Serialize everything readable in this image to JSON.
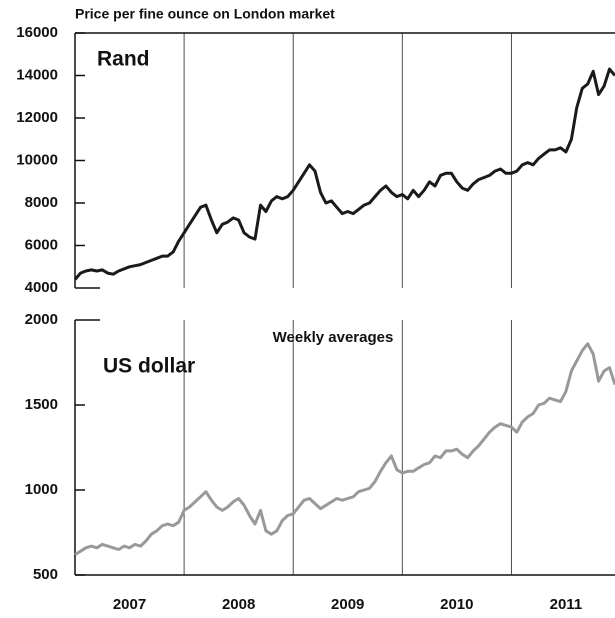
{
  "chart_data": [
    {
      "type": "line",
      "title": "Price per fine ounce on London market",
      "x": [
        2007.0,
        2007.05,
        2007.1,
        2007.15,
        2007.2,
        2007.25,
        2007.3,
        2007.35,
        2007.4,
        2007.45,
        2007.5,
        2007.55,
        2007.6,
        2007.65,
        2007.7,
        2007.75,
        2007.8,
        2007.85,
        2007.9,
        2007.95,
        2008.0,
        2008.05,
        2008.1,
        2008.15,
        2008.2,
        2008.25,
        2008.3,
        2008.35,
        2008.4,
        2008.45,
        2008.5,
        2008.55,
        2008.6,
        2008.65,
        2008.7,
        2008.75,
        2008.8,
        2008.85,
        2008.9,
        2008.95,
        2009.0,
        2009.05,
        2009.1,
        2009.15,
        2009.2,
        2009.25,
        2009.3,
        2009.35,
        2009.4,
        2009.45,
        2009.5,
        2009.55,
        2009.6,
        2009.65,
        2009.7,
        2009.75,
        2009.8,
        2009.85,
        2009.9,
        2009.95,
        2010.0,
        2010.05,
        2010.1,
        2010.15,
        2010.2,
        2010.25,
        2010.3,
        2010.35,
        2010.4,
        2010.45,
        2010.5,
        2010.55,
        2010.6,
        2010.65,
        2010.7,
        2010.75,
        2010.8,
        2010.85,
        2010.9,
        2010.95,
        2011.0,
        2011.05,
        2011.1,
        2011.15,
        2011.2,
        2011.25,
        2011.3,
        2011.35,
        2011.4,
        2011.45,
        2011.5,
        2011.55,
        2011.6,
        2011.65,
        2011.7,
        2011.75,
        2011.8,
        2011.85,
        2011.9,
        2011.95
      ],
      "series": [
        {
          "name": "Rand",
          "color": "#1a1a1a",
          "values": [
            4400,
            4700,
            4800,
            4850,
            4800,
            4850,
            4700,
            4650,
            4800,
            4900,
            5000,
            5050,
            5100,
            5200,
            5300,
            5400,
            5500,
            5500,
            5700,
            6200,
            6600,
            7000,
            7400,
            7800,
            7900,
            7200,
            6600,
            7000,
            7100,
            7300,
            7200,
            6600,
            6400,
            6300,
            7900,
            7600,
            8100,
            8300,
            8200,
            8300,
            8600,
            9000,
            9400,
            9800,
            9500,
            8500,
            8000,
            8100,
            7800,
            7500,
            7600,
            7500,
            7700,
            7900,
            8000,
            8300,
            8600,
            8800,
            8500,
            8300,
            8400,
            8200,
            8600,
            8300,
            8600,
            9000,
            8800,
            9300,
            9400,
            9400,
            9000,
            8700,
            8600,
            8900,
            9100,
            9200,
            9300,
            9500,
            9600,
            9400,
            9400,
            9500,
            9800,
            9900,
            9800,
            10100,
            10300,
            10500,
            10500,
            10600,
            10400,
            11000,
            12500,
            13400,
            13600,
            14200,
            13100,
            13500,
            14300,
            14000
          ]
        }
      ],
      "xlim": [
        2007,
        2011.95
      ],
      "dividers": [
        2008,
        2009,
        2010,
        2011
      ],
      "ylim": [
        4000,
        16000
      ],
      "yticks": [
        4000,
        6000,
        8000,
        10000,
        12000,
        14000,
        16000
      ]
    },
    {
      "type": "line",
      "annotation": "Weekly averages",
      "x": [
        2007.0,
        2007.05,
        2007.1,
        2007.15,
        2007.2,
        2007.25,
        2007.3,
        2007.35,
        2007.4,
        2007.45,
        2007.5,
        2007.55,
        2007.6,
        2007.65,
        2007.7,
        2007.75,
        2007.8,
        2007.85,
        2007.9,
        2007.95,
        2008.0,
        2008.05,
        2008.1,
        2008.15,
        2008.2,
        2008.25,
        2008.3,
        2008.35,
        2008.4,
        2008.45,
        2008.5,
        2008.55,
        2008.6,
        2008.65,
        2008.7,
        2008.75,
        2008.8,
        2008.85,
        2008.9,
        2008.95,
        2009.0,
        2009.05,
        2009.1,
        2009.15,
        2009.2,
        2009.25,
        2009.3,
        2009.35,
        2009.4,
        2009.45,
        2009.5,
        2009.55,
        2009.6,
        2009.65,
        2009.7,
        2009.75,
        2009.8,
        2009.85,
        2009.9,
        2009.95,
        2010.0,
        2010.05,
        2010.1,
        2010.15,
        2010.2,
        2010.25,
        2010.3,
        2010.35,
        2010.4,
        2010.45,
        2010.5,
        2010.55,
        2010.6,
        2010.65,
        2010.7,
        2010.75,
        2010.8,
        2010.85,
        2010.9,
        2010.95,
        2011.0,
        2011.05,
        2011.1,
        2011.15,
        2011.2,
        2011.25,
        2011.3,
        2011.35,
        2011.4,
        2011.45,
        2011.5,
        2011.55,
        2011.6,
        2011.65,
        2011.7,
        2011.75,
        2011.8,
        2011.85,
        2011.9,
        2011.95
      ],
      "series": [
        {
          "name": "US dollar",
          "color": "#999999",
          "values": [
            620,
            640,
            660,
            670,
            660,
            680,
            670,
            660,
            650,
            670,
            660,
            680,
            670,
            700,
            740,
            760,
            790,
            800,
            790,
            810,
            880,
            900,
            930,
            960,
            990,
            940,
            900,
            880,
            900,
            930,
            950,
            910,
            850,
            800,
            880,
            760,
            740,
            760,
            820,
            850,
            860,
            900,
            940,
            950,
            920,
            890,
            910,
            930,
            950,
            940,
            950,
            960,
            990,
            1000,
            1010,
            1050,
            1110,
            1160,
            1200,
            1120,
            1100,
            1110,
            1110,
            1130,
            1150,
            1160,
            1200,
            1190,
            1230,
            1230,
            1240,
            1210,
            1190,
            1230,
            1260,
            1300,
            1340,
            1370,
            1390,
            1380,
            1370,
            1340,
            1400,
            1430,
            1450,
            1500,
            1510,
            1540,
            1530,
            1520,
            1580,
            1700,
            1760,
            1820,
            1860,
            1800,
            1640,
            1700,
            1720,
            1620
          ]
        }
      ],
      "xlim": [
        2007,
        2011.95
      ],
      "dividers": [
        2008,
        2009,
        2010,
        2011
      ],
      "xticks": [
        {
          "value": 2007.5,
          "label": "2007"
        },
        {
          "value": 2008.5,
          "label": "2008"
        },
        {
          "value": 2009.5,
          "label": "2009"
        },
        {
          "value": 2010.5,
          "label": "2010"
        },
        {
          "value": 2011.5,
          "label": "2011"
        }
      ],
      "ylim": [
        500,
        2000
      ],
      "yticks": [
        500,
        1000,
        1500,
        2000
      ]
    }
  ]
}
